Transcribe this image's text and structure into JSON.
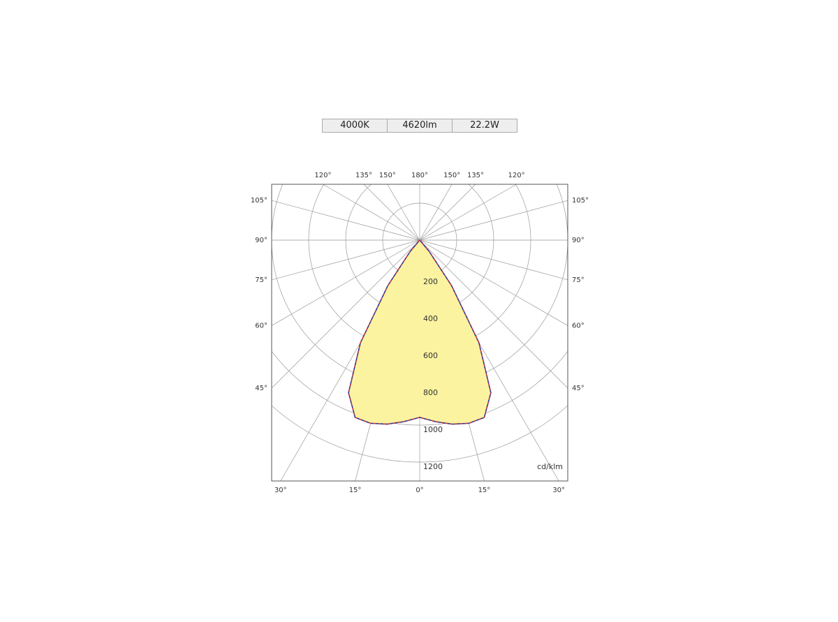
{
  "header": {
    "cells": [
      "4000K",
      "4620lm",
      "22.2W"
    ]
  },
  "chart_data": {
    "type": "polar",
    "unit_label": "cd/klm",
    "angles": [
      -45,
      -40,
      -35,
      -30,
      -25,
      -20,
      -15,
      -10,
      -5,
      0,
      5,
      10,
      15,
      20,
      25,
      30,
      35,
      40,
      45
    ],
    "fill": "#fbf3a0",
    "series": [
      {
        "color": "#d03030",
        "values": [
          0,
          80,
          300,
          640,
          910,
          1020,
          1025,
          1010,
          985,
          958,
          985,
          1010,
          1025,
          1020,
          910,
          640,
          300,
          80,
          0
        ]
      },
      {
        "color": "#2b3a9a",
        "values": [
          0,
          80,
          300,
          640,
          910,
          1020,
          1025,
          1010,
          985,
          958,
          985,
          1010,
          1025,
          1020,
          910,
          640,
          300,
          80,
          0
        ]
      }
    ],
    "rticks": [
      200,
      400,
      600,
      800,
      1000,
      1200
    ],
    "angle_ticks": [
      {
        "value": 0,
        "label": "0°"
      },
      {
        "value": 15,
        "label": "15°"
      },
      {
        "value": 30,
        "label": "30°"
      },
      {
        "value": 45,
        "label": "45°"
      },
      {
        "value": 60,
        "label": "60°"
      },
      {
        "value": 75,
        "label": "75°"
      },
      {
        "value": 90,
        "label": "90°"
      },
      {
        "value": 105,
        "label": "105°"
      },
      {
        "value": 120,
        "label": "120°"
      },
      {
        "value": 135,
        "label": "135°"
      },
      {
        "value": 150,
        "label": "150°"
      },
      {
        "value": 180,
        "label": "180°"
      }
    ],
    "grid": true
  }
}
